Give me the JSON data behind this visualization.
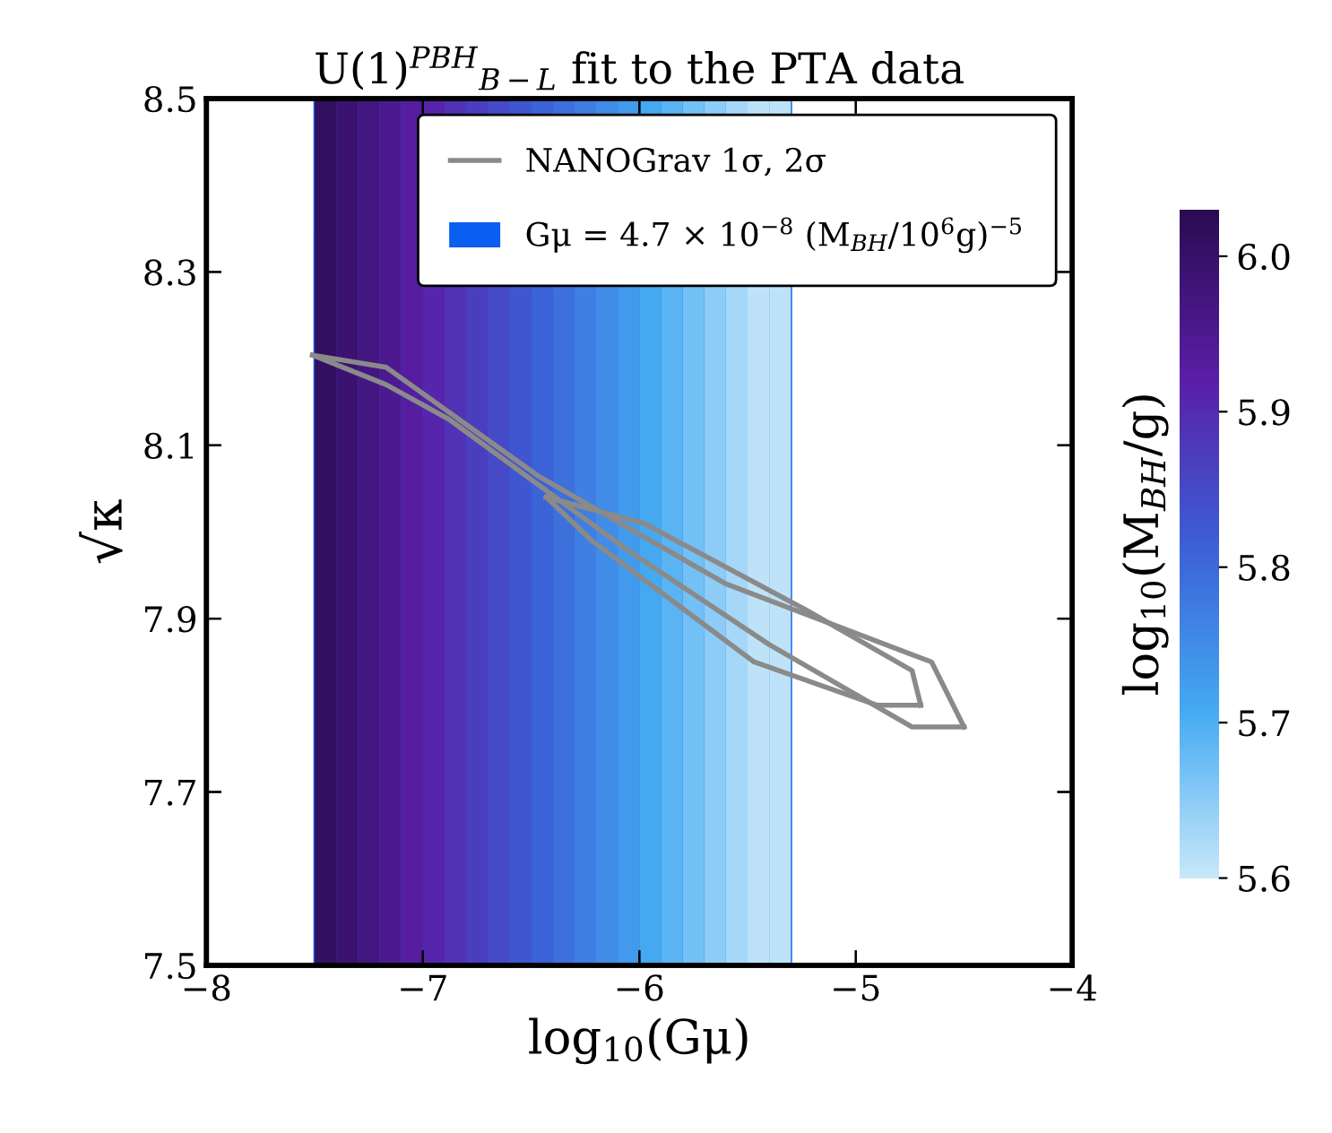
{
  "chart_data": [
    {
      "type": "heatmap",
      "title": "U(1)$^{PBH}$$_{B−L}$ fit to the PTA data",
      "clabel": "log$_{10}$(M$_{BH}$/g)",
      "xlim": [
        -8,
        -4
      ],
      "ylim": [
        7.5,
        8.5
      ],
      "tick_labels": false,
      "xticks": [
        {
          "value": -8,
          "label": null
        },
        {
          "value": -7,
          "label": null
        },
        {
          "value": -6,
          "label": null
        },
        {
          "value": -5,
          "label": null
        },
        {
          "value": -4,
          "label": null
        }
      ],
      "yticks": [
        {
          "value": 7.5,
          "label": null
        },
        {
          "value": 7.7,
          "label": null
        },
        {
          "value": 7.9,
          "label": null
        },
        {
          "value": 8.1,
          "label": null
        },
        {
          "value": 8.3,
          "label": null
        },
        {
          "value": 8.5,
          "label": null
        }
      ],
      "clim": [
        5.6,
        6.03
      ],
      "cticks": [
        5.6,
        5.7,
        5.8,
        5.9,
        {
          "value": 6,
          "label": "6.0"
        }
      ],
      "colors": [
        "#c8e8fa",
        "#44aaf2",
        "#3c5fd6",
        "#5a1ea6",
        "#2a0c52"
      ],
      "x": [
        -7.95,
        -7.85,
        -7.75,
        -7.65,
        -7.55,
        -7.45,
        -7.35,
        -7.25,
        -7.15,
        -7.05,
        -6.95,
        -6.85,
        -6.75,
        -6.65,
        -6.55,
        -6.45,
        -6.35,
        -6.25,
        -6.15,
        -6.05,
        -5.95,
        -5.85,
        -5.75,
        -5.65,
        -5.55,
        -5.45,
        -5.35,
        -5.25,
        -5.15,
        -5.05,
        -4.95,
        -4.85,
        -4.75,
        -4.65,
        -4.55,
        -4.45,
        -4.35,
        -4.25,
        -4.15,
        -4.05
      ],
      "cells": [
        [
          null,
          null,
          null,
          null,
          null,
          6.01,
          5.99,
          5.97,
          5.95,
          5.93,
          5.91,
          5.89,
          5.87,
          5.85,
          5.83,
          5.81,
          5.79,
          5.77,
          5.75,
          5.73,
          5.71,
          5.69,
          5.67,
          5.65,
          5.63,
          5.61,
          5.61,
          null,
          null,
          null,
          null,
          null,
          null,
          null,
          null,
          null,
          null,
          null,
          null,
          null
        ]
      ],
      "bands": [
        {
          "axis": "x",
          "from": -7.5,
          "to": -5.3,
          "label": "Gμ = 4.7 × 10$^{−8}$ (M$_{BH}$/10$^{6}$g)$^{−5}$",
          "color": "#0a5ef0"
        }
      ]
    },
    {
      "type": "line",
      "xlabel": "log$_{10}$(Gμ)",
      "ylabel": "√κ",
      "xlim": [
        -8,
        -4
      ],
      "ylim": [
        7.5,
        8.5
      ],
      "xticks": [
        {
          "value": -8,
          "label": "−8"
        },
        {
          "value": -7,
          "label": "−7"
        },
        {
          "value": -6,
          "label": "−6"
        },
        {
          "value": -5,
          "label": "−5"
        },
        {
          "value": -4,
          "label": "−4"
        }
      ],
      "yticks": [
        7.5,
        7.7,
        7.9,
        8.1,
        8.3,
        8.5
      ],
      "grid": false,
      "legend": "top right",
      "line_style": "solid",
      "marker": "none",
      "series": [
        {
          "type": "line",
          "name": "NANOGrav 1σ, 2σ",
          "color": "#8a8a8a",
          "x": [
            -7.51,
            -7.17,
            -6.47,
            -5.6,
            -4.65,
            -4.5
          ],
          "values": [
            8.204,
            8.19,
            8.065,
            7.94,
            7.85,
            7.775
          ]
        },
        {
          "type": "line",
          "color": "#8a8a8a",
          "x": [
            -7.51,
            -7.17,
            -6.88,
            -6.06,
            -5.4,
            -4.74,
            -4.5
          ],
          "values": [
            8.204,
            8.17,
            8.13,
            7.98,
            7.87,
            7.775,
            7.775
          ]
        },
        {
          "type": "line",
          "color": "#8a8a8a",
          "x": [
            -6.43,
            -5.98,
            -5.23,
            -4.74,
            -4.7
          ],
          "values": [
            8.04,
            8.01,
            7.91,
            7.84,
            7.8
          ]
        },
        {
          "type": "line",
          "color": "#8a8a8a",
          "x": [
            -6.43,
            -6.22,
            -5.47,
            -4.9,
            -4.7
          ],
          "values": [
            8.04,
            7.99,
            7.85,
            7.8,
            7.8
          ]
        }
      ]
    }
  ]
}
